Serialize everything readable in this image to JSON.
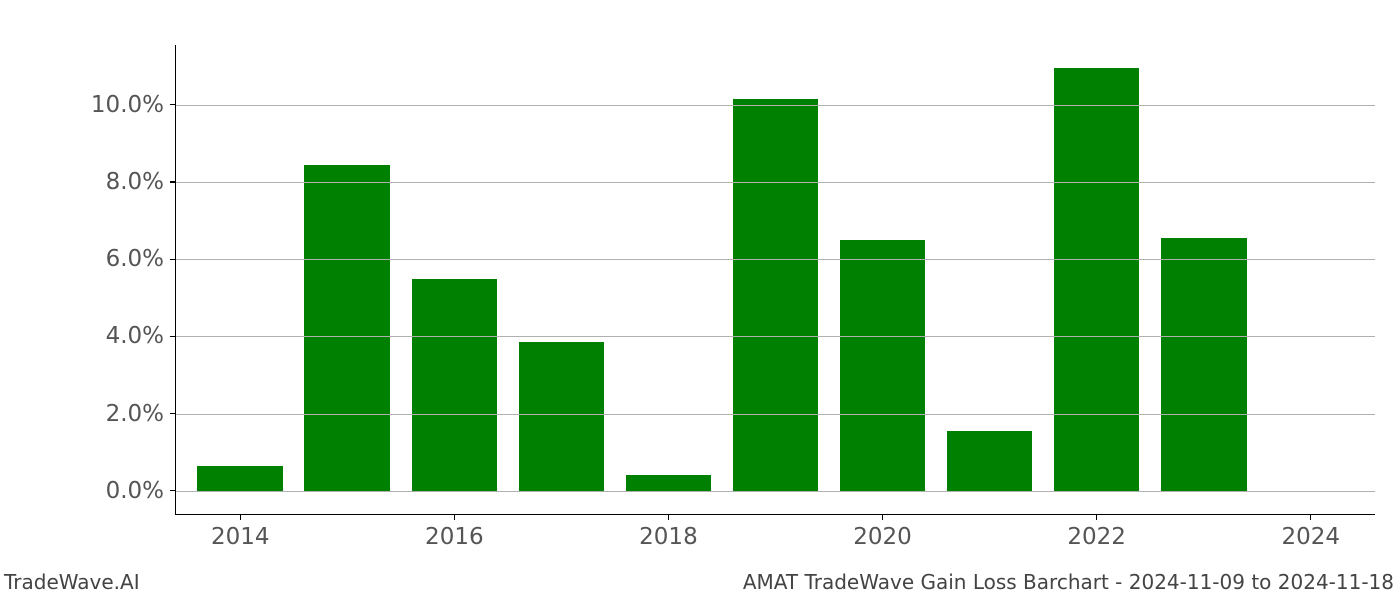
{
  "chart": {
    "type": "bar",
    "background_color": "#ffffff",
    "grid_color": "#b0b0b0",
    "axis_color": "#000000",
    "tick_label_color": "#555555",
    "tick_fontsize": 23,
    "label_color": "#444444",
    "label_fontsize": 20,
    "years": [
      2014,
      2015,
      2016,
      2017,
      2018,
      2019,
      2020,
      2021,
      2022,
      2023,
      2024
    ],
    "values": [
      0.65,
      8.45,
      5.5,
      3.85,
      0.4,
      10.15,
      6.5,
      1.55,
      10.95,
      6.55,
      0.0
    ],
    "bar_colors": [
      "#008000",
      "#008000",
      "#008000",
      "#008000",
      "#008000",
      "#008000",
      "#008000",
      "#008000",
      "#008000",
      "#008000",
      "#008000"
    ],
    "bar_width_years": 0.8,
    "x_min": 2013.4,
    "x_max": 2024.6,
    "y_min": -0.6,
    "y_max": 11.55,
    "y_ticks": [
      0.0,
      2.0,
      4.0,
      6.0,
      8.0,
      10.0
    ],
    "y_tick_labels": [
      "0.0%",
      "2.0%",
      "4.0%",
      "6.0%",
      "8.0%",
      "10.0%"
    ],
    "x_ticks": [
      2014,
      2016,
      2018,
      2020,
      2022,
      2024
    ],
    "x_tick_labels": [
      "2014",
      "2016",
      "2018",
      "2020",
      "2022",
      "2024"
    ]
  },
  "footer": {
    "left": "TradeWave.AI",
    "right": "AMAT TradeWave Gain Loss Barchart - 2024-11-09 to 2024-11-18"
  }
}
